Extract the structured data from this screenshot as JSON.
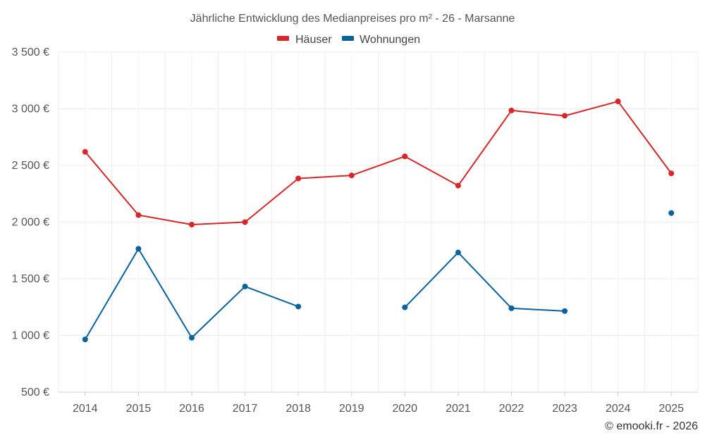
{
  "chart_data": {
    "type": "line",
    "title": "Jährliche Entwicklung des Medianpreises pro m² - 26 - Marsanne",
    "categories": [
      "2014",
      "2015",
      "2016",
      "2017",
      "2018",
      "2019",
      "2020",
      "2021",
      "2022",
      "2023",
      "2024",
      "2025"
    ],
    "series": [
      {
        "name": "Häuser",
        "color": "#d62728",
        "values": [
          2620,
          2062,
          1978,
          2000,
          2385,
          2412,
          2580,
          2322,
          2985,
          2938,
          3065,
          2430
        ]
      },
      {
        "name": "Wohnungen",
        "color": "#08629b",
        "values": [
          965,
          1765,
          980,
          1432,
          1255,
          null,
          1248,
          1732,
          1240,
          1215,
          null,
          2080
        ]
      }
    ],
    "y_ticks": [
      "500 €",
      "1 000 €",
      "1 500 €",
      "2 000 €",
      "2 500 €",
      "3 000 €",
      "3 500 €"
    ],
    "y_tick_values": [
      500,
      1000,
      1500,
      2000,
      2500,
      3000,
      3500
    ],
    "ylim": [
      500,
      3500
    ],
    "grid": true,
    "legend_position": "top-center",
    "xlabel": "",
    "ylabel": ""
  },
  "credit": "© emooki.fr - 2026"
}
